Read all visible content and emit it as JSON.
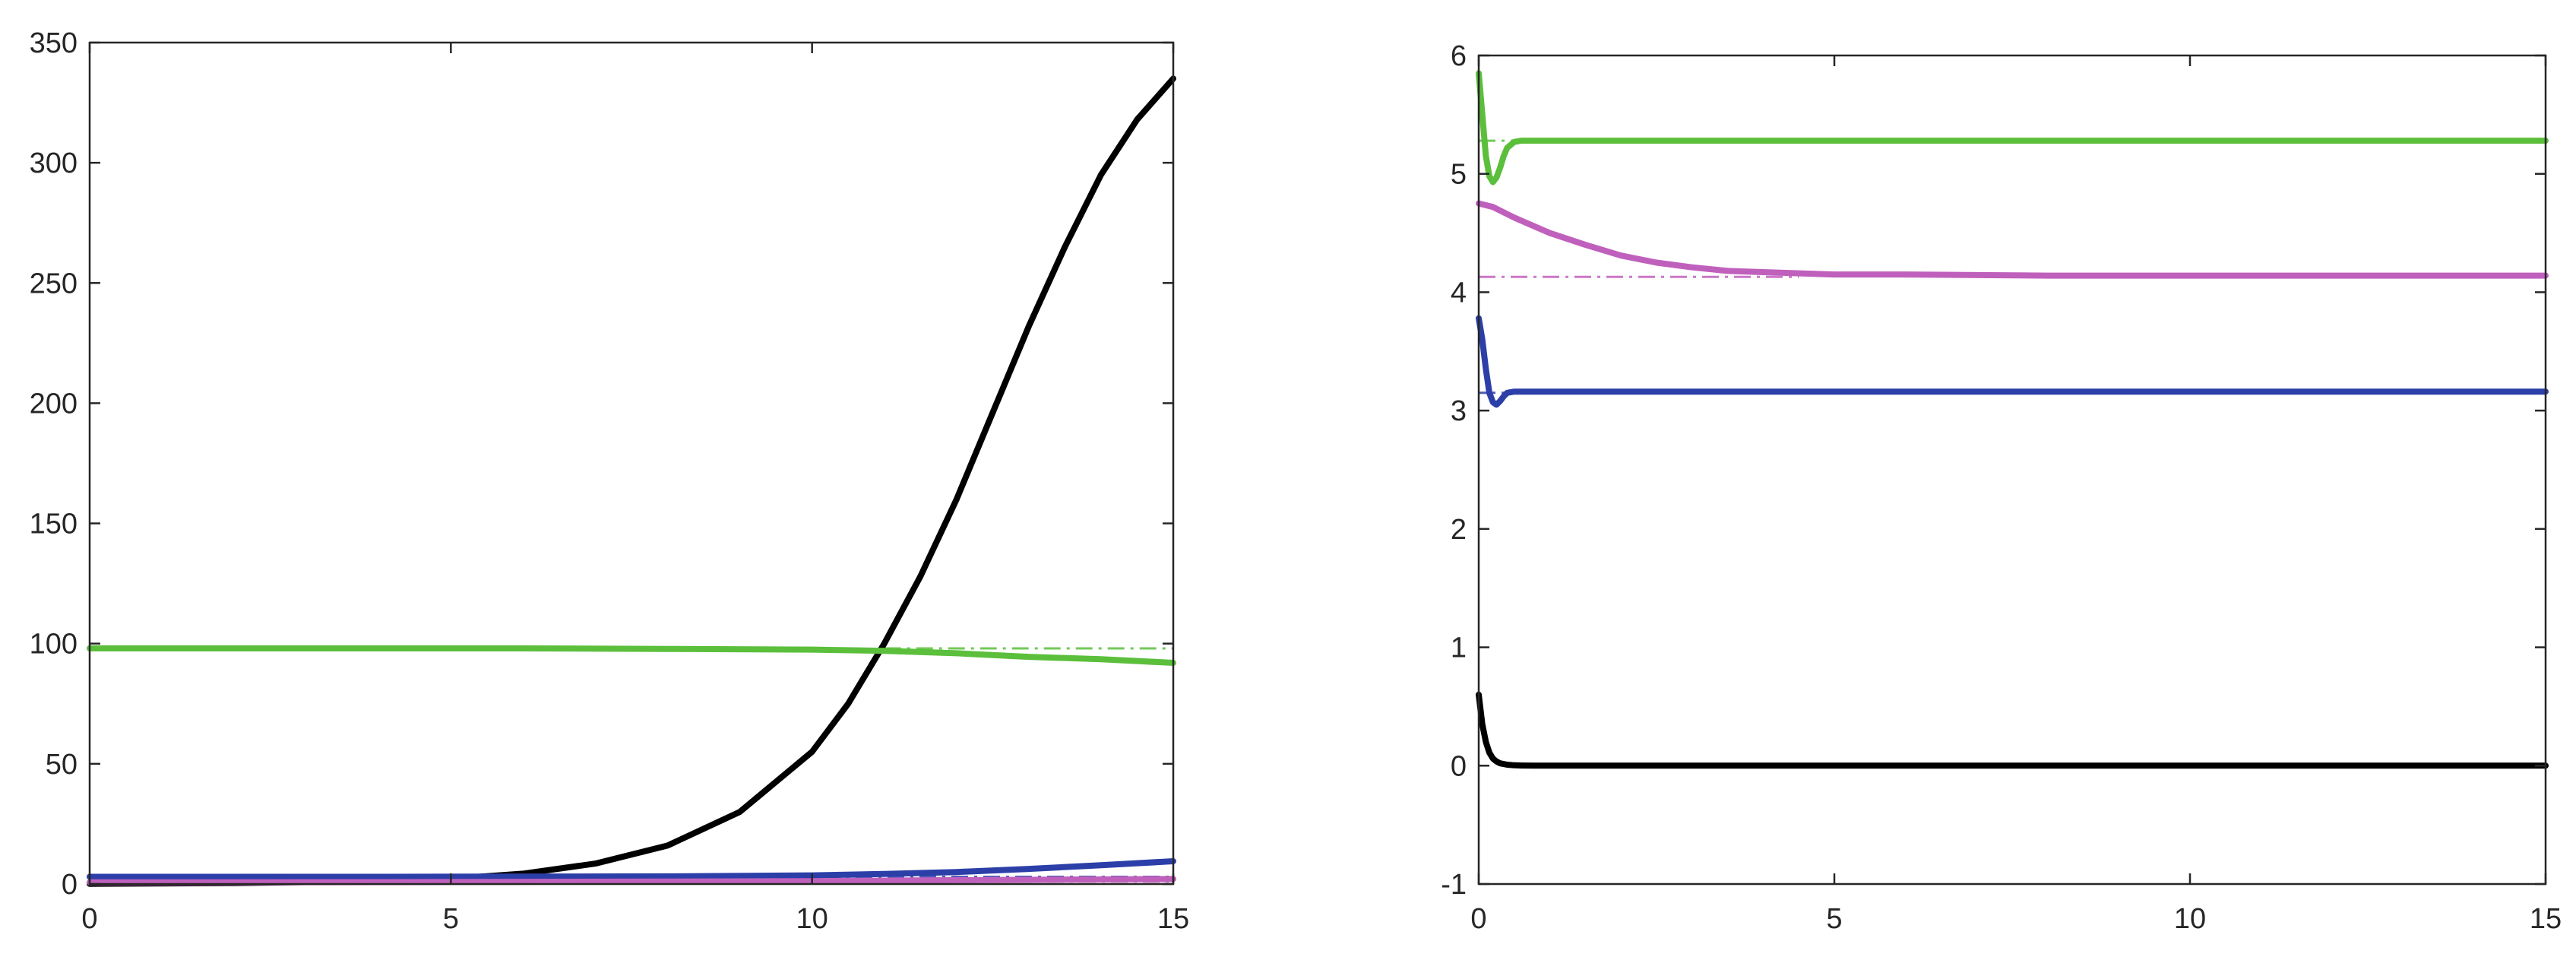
{
  "chart_data": [
    {
      "type": "line",
      "title": "",
      "xlabel": "",
      "ylabel": "",
      "xlim": [
        0,
        15
      ],
      "ylim": [
        0,
        350
      ],
      "xticks": [
        "0",
        "5",
        "10",
        "15"
      ],
      "yticks": [
        "0",
        "50",
        "100",
        "150",
        "200",
        "250",
        "300",
        "350"
      ],
      "grid": false,
      "legend": "none",
      "series": [
        {
          "color": "#000000",
          "style": "solid",
          "x": [
            0,
            2,
            4,
            5,
            6,
            7,
            8,
            9,
            10,
            10.5,
            11,
            11.5,
            12,
            12.5,
            13,
            13.5,
            14,
            14.5,
            15
          ],
          "y": [
            0.1,
            0.4,
            1.2,
            2.2,
            4.3,
            8.5,
            16,
            30,
            55,
            75,
            100,
            128,
            160,
            196,
            232,
            265,
            295,
            318,
            335
          ]
        },
        {
          "color": "#5bbf3c",
          "style": "solid",
          "x": [
            0,
            2,
            4,
            6,
            8,
            10,
            11,
            12,
            13,
            14,
            15
          ],
          "y": [
            98,
            98,
            98,
            98,
            97.8,
            97.5,
            97,
            96,
            94.5,
            93.5,
            92
          ]
        },
        {
          "color": "#5bbf3c",
          "style": "dashdot",
          "x": [
            11,
            15
          ],
          "y": [
            98,
            98
          ]
        },
        {
          "color": "#2c3fa8",
          "style": "solid",
          "x": [
            0,
            4,
            8,
            10,
            11,
            12,
            13,
            14,
            15
          ],
          "y": [
            3,
            3,
            3.2,
            3.6,
            4.2,
            5,
            6.3,
            7.8,
            9.5
          ]
        },
        {
          "color": "#c060bd",
          "style": "solid",
          "x": [
            0,
            4,
            8,
            10,
            12,
            15
          ],
          "y": [
            0.7,
            0.8,
            1.0,
            1.2,
            1.6,
            2.1
          ]
        },
        {
          "color": "#2c3fa8",
          "style": "dashdot",
          "x": [
            0,
            15
          ],
          "y": [
            3,
            3
          ]
        },
        {
          "color": "#c060bd",
          "style": "dashdot",
          "x": [
            0,
            15
          ],
          "y": [
            1.0,
            1.0
          ]
        }
      ]
    },
    {
      "type": "line",
      "title": "",
      "xlabel": "",
      "ylabel": "",
      "xlim": [
        0,
        15
      ],
      "ylim": [
        -1,
        6
      ],
      "xticks": [
        "0",
        "5",
        "10",
        "15"
      ],
      "yticks": [
        "-1",
        "0",
        "1",
        "2",
        "3",
        "4",
        "5",
        "6"
      ],
      "grid": false,
      "legend": "none",
      "series": [
        {
          "color": "#5bbf3c",
          "style": "solid",
          "x": [
            0,
            0.05,
            0.1,
            0.15,
            0.2,
            0.25,
            0.3,
            0.35,
            0.4,
            0.5,
            0.6,
            0.8,
            1,
            2,
            5,
            10,
            15
          ],
          "y": [
            5.85,
            5.5,
            5.15,
            4.98,
            4.93,
            4.97,
            5.05,
            5.15,
            5.22,
            5.27,
            5.28,
            5.28,
            5.28,
            5.28,
            5.28,
            5.28,
            5.28
          ]
        },
        {
          "color": "#5bbf3c",
          "style": "dashdot",
          "x": [
            0,
            1
          ],
          "y": [
            5.28,
            5.28
          ]
        },
        {
          "color": "#c060bd",
          "style": "solid",
          "x": [
            0,
            0.2,
            0.5,
            1,
            1.5,
            2,
            2.5,
            3,
            3.5,
            4,
            5,
            6,
            8,
            10,
            15
          ],
          "y": [
            4.75,
            4.72,
            4.63,
            4.5,
            4.4,
            4.31,
            4.25,
            4.21,
            4.18,
            4.17,
            4.15,
            4.15,
            4.14,
            4.14,
            4.14
          ]
        },
        {
          "color": "#c060bd",
          "style": "dashdot",
          "x": [
            0,
            4.5
          ],
          "y": [
            4.13,
            4.13
          ]
        },
        {
          "color": "#2c3fa8",
          "style": "solid",
          "x": [
            0,
            0.05,
            0.1,
            0.15,
            0.2,
            0.25,
            0.3,
            0.35,
            0.4,
            0.5,
            0.6,
            0.8,
            1,
            2,
            5,
            10,
            15
          ],
          "y": [
            3.78,
            3.6,
            3.35,
            3.15,
            3.07,
            3.05,
            3.08,
            3.12,
            3.15,
            3.16,
            3.16,
            3.16,
            3.16,
            3.16,
            3.16,
            3.16,
            3.16
          ]
        },
        {
          "color": "#2c3fa8",
          "style": "dashdot",
          "x": [
            0,
            1
          ],
          "y": [
            3.15,
            3.15
          ]
        },
        {
          "color": "#000000",
          "style": "solid",
          "x": [
            0,
            0.05,
            0.1,
            0.15,
            0.2,
            0.25,
            0.3,
            0.4,
            0.5,
            0.6,
            0.8,
            1,
            2,
            5,
            10,
            15
          ],
          "y": [
            0.6,
            0.35,
            0.2,
            0.11,
            0.06,
            0.035,
            0.02,
            0.008,
            0.003,
            0.001,
            0,
            0,
            0,
            0,
            0,
            0
          ]
        }
      ]
    }
  ]
}
